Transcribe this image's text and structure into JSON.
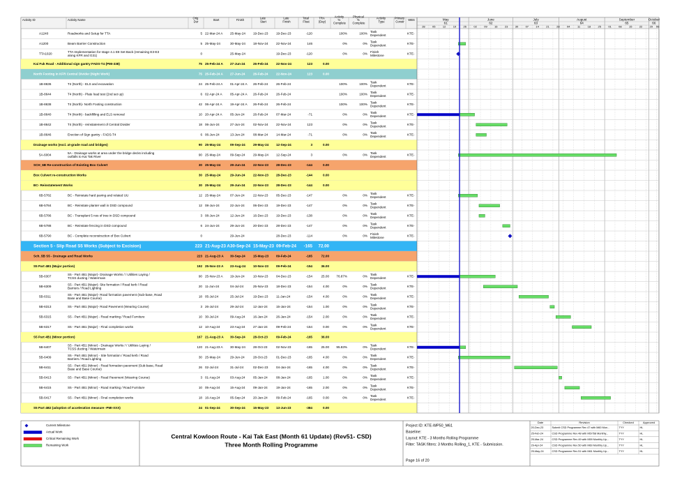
{
  "table": {
    "columns": [
      "Activity ID",
      "Activity Name",
      "Orig Dur",
      "Start",
      "Finish",
      "Late Start",
      "Late Finish",
      "Total Float",
      "TRA (Day)",
      "Activity % Complete",
      "Physical % Complete",
      "Activity Type",
      "Primary Constr",
      "WBS"
    ],
    "rows": [
      {
        "cells": [
          "A1240",
          "Roadworks and Setup for TTA",
          5,
          "22-Mar-24 A",
          "25-May-24",
          "19-Dec-23",
          "19-Dec-23",
          -120,
          null,
          "100%",
          "100%",
          "Task Dependent",
          null,
          "KTE-"
        ]
      },
      {
        "cells": [
          "A1200",
          "Beam Barrier Construction",
          5,
          "25-May-24",
          "30-May-24",
          "18-Nov-24",
          "22-Nov-24",
          146,
          null,
          "0%",
          "0%",
          "Task Dependent",
          null,
          "KTE-"
        ]
      },
      {
        "cells": [
          "TTA1020",
          "TTA Implementation for stage 4.1 E8 Set Back (remaining E3-E3 along KFR and G31)",
          0,
          null,
          "25-May-24",
          null,
          "19-Dec-23",
          -120,
          null,
          "0%",
          "0%",
          "Finish Milestone",
          null,
          "KTE-"
        ]
      },
      {
        "color": "#ffff99",
        "cells": [
          null,
          "Kai Fuk Road - Additional sign gantry FADS-T4 (PMI-338)",
          75,
          "25-Feb-24 A",
          "27-Jun-24",
          "26-Feb-24",
          "22-Nov-24",
          123,
          "0.00"
        ]
      },
      {
        "color": "#8fcfcf",
        "text_color": "#ffffff",
        "cells": [
          null,
          "North Footing in KFR Central Divider (Night Work)",
          75,
          "25-Feb-24 A",
          "27-Jun-24",
          "26-Feb-24",
          "22-Nov-24",
          123,
          "0.00"
        ]
      },
      {
        "cells": [
          "1B-8636",
          "T4 (North) - ELS and excavation",
          24,
          "25-Feb-24 A",
          "01-Apr-24 A",
          "26-Feb-24",
          "26-Feb-24",
          null,
          null,
          "100%",
          "100%",
          "Task Dependent",
          null,
          "KTE-"
        ]
      },
      {
        "cells": [
          "1B-8644",
          "T4 (North) - Plate load test (2nd set up)",
          6,
          "02-Apr-24 A",
          "05-Apr-24 A",
          "26-Feb-24",
          "26-Feb-24",
          null,
          null,
          "100%",
          "100%",
          "Task Dependent",
          null,
          "KTE-"
        ]
      },
      {
        "cells": [
          "1B-8638",
          "T4 (North)- North Footing construction",
          42,
          "06-Apr-24 A",
          "19-Apr-24 A",
          "26-Feb-24",
          "26-Feb-24",
          null,
          null,
          "100%",
          "100%",
          "Task Dependent",
          null,
          "KTE-"
        ]
      },
      {
        "cells": [
          "1B-8640",
          "T4 (North) - backfilling and ELS removal",
          10,
          "20-Apr-24 A",
          "05-Jun-24",
          "26-Feb-24",
          "07-Mar-24",
          -71,
          null,
          "0%",
          "0%",
          "Task Dependent",
          null,
          "KTE-"
        ]
      },
      {
        "cells": [
          "1B-8642",
          "T4 (North) - reinstatement of Central Divider",
          18,
          "06-Jun-24",
          "27-Jun-24",
          "02-Nov-24",
          "22-Nov-24",
          123,
          null,
          "0%",
          "0%",
          "Task Dependent",
          null,
          "KTE-"
        ]
      },
      {
        "cells": [
          "1B-8646",
          "Erection of Sign gantry - FADS-T4",
          6,
          "06-Jun-24",
          "13-Jun-24",
          "08-Mar-24",
          "14-Mar-24",
          -71,
          null,
          "0%",
          "0%",
          "Task Dependent",
          null,
          "KTE-"
        ]
      },
      {
        "color": "#ffff99",
        "cells": [
          null,
          "Drainage works (excl. at-grade road and bridges)",
          90,
          "25-May-24",
          "09-Sep-24",
          "29-May-24",
          "12-Sep-24",
          3,
          "0.00"
        ]
      },
      {
        "cells": [
          "5A-6004",
          "5A - Drainage works at area under the bridge decks including outfalls to Kai Tak River",
          90,
          "25-May-24",
          "09-Sep-24",
          "29-May-24",
          "12-Sep-24",
          3,
          null,
          "0%",
          "0%",
          "Task Dependent",
          null,
          "KTE-"
        ]
      },
      {
        "color": "#f6a46c",
        "cells": [
          null,
          "SCH_6B Re-construction of Existing Box Culvert",
          30,
          "25-May-24",
          "29-Jun-24",
          "22-Nov-23",
          "28-Dec-23",
          -144,
          "0.00"
        ]
      },
      {
        "color": "#ffff99",
        "cells": [
          null,
          "Box Culvert re-construction Works",
          30,
          "25-May-24",
          "29-Jun-24",
          "22-Nov-23",
          "28-Dec-23",
          -144,
          "0.00"
        ]
      },
      {
        "color": "#ffff99",
        "cells": [
          null,
          "BC- Reinstatement Works",
          30,
          "25-May-24",
          "29-Jun-24",
          "22-Nov-23",
          "28-Dec-23",
          -144,
          "0.00"
        ]
      },
      {
        "cells": [
          "6B-5782",
          "BC - Reinstate hard paving and related UU",
          12,
          "25-May-24",
          "07-Jun-24",
          "22-Nov-23",
          "05-Dec-23",
          -147,
          null,
          "0%",
          "0%",
          "Task Dependent",
          null,
          "KTE-"
        ]
      },
      {
        "cells": [
          "6B-5784",
          "BC - Reinstate planter wall in DSD compound",
          12,
          "08-Jun-24",
          "22-Jun-24",
          "06-Dec-23",
          "19-Dec-23",
          -147,
          null,
          "0%",
          "0%",
          "Task Dependent",
          null,
          "KTE-"
        ]
      },
      {
        "cells": [
          "6B-5786",
          "BC - Transplant 5 nos of tree in DSD compound",
          3,
          "08-Jun-24",
          "12-Jun-24",
          "16-Dec-23",
          "19-Dec-23",
          -138,
          null,
          "0%",
          "0%",
          "Task Dependent",
          null,
          "KTE-"
        ]
      },
      {
        "cells": [
          "6B-5788",
          "BC - Reinstate fencing in DSD compound",
          6,
          "24-Jun-24",
          "29-Jun-24",
          "20-Dec-23",
          "28-Dec-23",
          -147,
          null,
          "0%",
          "0%",
          "Task Dependent",
          null,
          "KTE-"
        ]
      },
      {
        "cells": [
          "6B-5790",
          "BC - Complete reconstruction of Box Culvert",
          0,
          null,
          "29-Jun-24",
          null,
          "28-Dec-23",
          -114,
          null,
          "0%",
          "0%",
          "Finish Milestone",
          null,
          "KTE-"
        ]
      },
      {
        "color": "#33b5f5",
        "text_color": "#ffffff",
        "large": true,
        "cells": [
          null,
          "Section 5 - Slip Road S5 Works (Subject to Excision)",
          223,
          "21-Aug-23 A",
          "30-Sep-24",
          "15-May-23",
          "09-Feb-24",
          -165,
          "72.00"
        ]
      },
      {
        "color": "#f6a46c",
        "cells": [
          null,
          "Sch_5B S5 - Drainage and Road Works",
          223,
          "21-Aug-23 A",
          "30-Sep-24",
          "15-May-23",
          "09-Feb-24",
          -165,
          "72.00"
        ]
      },
      {
        "color": "#ffff99",
        "cells": [
          null,
          "S5 Part 4B1 (Major portion)",
          192,
          "25-Nov-23 A",
          "23-Aug-24",
          "10-Nov-23",
          "09-Feb-24",
          -154,
          "36.00"
        ]
      },
      {
        "cells": [
          "5B-6307",
          "S5 - Part 4B1 (Major)- Drainage Works / / Utilities Laying / TCSS ducting / Watermain",
          90,
          "25-Nov-23 A",
          "19-Jun-24",
          "10-Nov-23",
          "04-Dec-23",
          -154,
          "25.00",
          "76.87%",
          "0%",
          "Task Dependent",
          null,
          "KTE-"
        ]
      },
      {
        "cells": [
          "5B-6309",
          "S5 - Part 4B1 (Major)- Site formation / Road kerb / Road Barriers / Road Lighting",
          20,
          "11-Jun-24",
          "04-Jul-24",
          "25-Nov-23",
          "18-Dec-23",
          -154,
          "4.00",
          "0%",
          "0%",
          "Task Dependent",
          null,
          "KTE-"
        ]
      },
      {
        "cells": [
          "5B-6311",
          "S5 - Part 4B1 (Major)- Road formation pavement (Sub-base, Road Base and Base Course)",
          18,
          "05-Jul-24",
          "25-Jul-24",
          "19-Dec-23",
          "11-Jan-24",
          -154,
          "4.00",
          "0%",
          "0%",
          "Task Dependent",
          null,
          "KTE-"
        ]
      },
      {
        "cells": [
          "5B-6313",
          "S5 - Part 4B1 (Major)- Road Pavement (Wearing Course)",
          3,
          "26-Jul-24",
          "29-Jul-24",
          "12-Jan-24",
          "15-Jan-24",
          -154,
          "1.00",
          "0%",
          "0%",
          "Task Dependent",
          null,
          "KTE-"
        ]
      },
      {
        "cells": [
          "5B-6315",
          "S5 - Part 4B1 (Major) - Road marking / Road Furniture",
          10,
          "30-Jul-24",
          "09-Aug-24",
          "16-Jan-24",
          "26-Jan-24",
          -154,
          "2.00",
          "0%",
          "0%",
          "Task Dependent",
          null,
          "KTE-"
        ]
      },
      {
        "cells": [
          "5B-6317",
          "S5 - Part 4B1 (Major) - Final completion works",
          12,
          "10-Aug-24",
          "23-Aug-24",
          "27-Jan-24",
          "09-Feb-24",
          -154,
          "0.00",
          "0%",
          "0%",
          "Task Dependent",
          null,
          "KTE-"
        ]
      },
      {
        "color": "#ffff99",
        "cells": [
          null,
          "S5 Part 4B1 (Minor portion)",
          167,
          "21-Aug-23 A",
          "30-Sep-24",
          "28-Oct-23",
          "09-Feb-24",
          -165,
          "36.00"
        ]
      },
      {
        "cells": [
          "5B-6407",
          "S5 - Part 4B1 (Minor) - Drainage Works / / Utilities Laying / TCSS ducting / Watermain",
          120,
          "21-Aug-23 A",
          "30-May-24",
          "28-Oct-23",
          "02-Nov-23",
          -165,
          "25.00",
          "95.83%",
          "0%",
          "Task Dependent",
          null,
          "KTE-"
        ]
      },
      {
        "cells": [
          "5B-6409",
          "S5 - Part 4B1 (Minor) - Site formation / Road kerb / Road Barriers / Road Lighting",
          30,
          "25-May-24",
          "29-Jun-24",
          "28-Oct-23",
          "01-Dec-23",
          -165,
          "4.00",
          "0%",
          "0%",
          "Task Dependent",
          null,
          "KTE-"
        ]
      },
      {
        "cells": [
          "5B-6411",
          "S5 - Part 4B1 (Minor) - Road formation pavement (Sub-base, Road Base and Base Course)",
          26,
          "02-Jul-24",
          "31-Jul-24",
          "02-Dec-23",
          "04-Jan-24",
          -165,
          "4.00",
          "0%",
          "0%",
          "Task Dependent",
          null,
          "KTE-"
        ]
      },
      {
        "cells": [
          "5B-6413",
          "S5 - Part 4B1 (Minor) - Road Pavement (Wearing Course)",
          3,
          "01-Aug-24",
          "03-Aug-24",
          "05-Jan-24",
          "08-Jan-24",
          -165,
          "1.00",
          "0%",
          "0%",
          "Task Dependent",
          null,
          "KTE-"
        ]
      },
      {
        "cells": [
          "5B-6415",
          "S5 - Part 4B1 (Minor) - Road marking / Road Furniture",
          10,
          "05-Aug-24",
          "15-Aug-24",
          "09-Jan-24",
          "19-Jan-24",
          -165,
          "2.00",
          "0%",
          "0%",
          "Task Dependent",
          null,
          "KTE-"
        ]
      },
      {
        "cells": [
          "5B-6417",
          "S5 - Part 4B1 (Minor) - Final completion works",
          18,
          "16-Aug-24",
          "05-Sep-24",
          "20-Jan-24",
          "09-Feb-24",
          -165,
          "0.00",
          "0%",
          "0%",
          "Task Dependent",
          null,
          "KTE-"
        ]
      },
      {
        "color": "#ffff99",
        "cells": [
          null,
          "S5 Part 4B2 (adoption of acceleration measure -PMI-XXX)",
          24,
          "01-Sep-24",
          "30-Sep-24",
          "15-May-23",
          "13-Jun-23",
          -384,
          "0.00"
        ]
      }
    ]
  },
  "timeline": {
    "months": [
      {
        "name": "May",
        "period": "61"
      },
      {
        "name": "June",
        "period": "62"
      },
      {
        "name": "July",
        "period": "63"
      },
      {
        "name": "August",
        "period": "64"
      },
      {
        "name": "September",
        "period": "65"
      },
      {
        "name": "October",
        "period": "66"
      }
    ],
    "weeks": [
      {
        "value": "28-Apr-24",
        "label": "28"
      },
      {
        "value": "05-May-24",
        "label": "05"
      },
      {
        "value": "12-May-24",
        "label": "12"
      },
      {
        "value": "19-May-24",
        "label": "19"
      },
      {
        "value": "26-May-24",
        "label": "26"
      },
      {
        "value": "02-Jun-24",
        "label": "02"
      },
      {
        "value": "09-Jun-24",
        "label": "09"
      },
      {
        "value": "16-Jun-24",
        "label": "16"
      },
      {
        "value": "23-Jun-24",
        "label": "23"
      },
      {
        "value": "30-Jun-24",
        "label": "30"
      },
      {
        "value": "07-Jul-24",
        "label": "07"
      },
      {
        "value": "14-Jul-24",
        "label": "14"
      },
      {
        "value": "21-Jul-24",
        "label": "21"
      },
      {
        "value": "28-Jul-24",
        "label": "28"
      },
      {
        "value": "04-Aug-24",
        "label": "04"
      },
      {
        "value": "11-Aug-24",
        "label": "11"
      },
      {
        "value": "18-Aug-24",
        "label": "18"
      },
      {
        "value": "25-Aug-24",
        "label": "25"
      },
      {
        "value": "01-Sep-24",
        "label": "01"
      },
      {
        "value": "08-Sep-24",
        "label": "08"
      },
      {
        "value": "15-Sep-24",
        "label": "15"
      },
      {
        "value": "22-Sep-24",
        "label": "22"
      },
      {
        "value": "29-Sep-24",
        "label": "29"
      },
      {
        "value": "06-Oct-24",
        "label": "06"
      }
    ]
  },
  "legend": [
    "Current Milestone",
    "Actual Work",
    "Critical Remaining Work",
    "Remaining Work"
  ],
  "footer": {
    "title": "Central Kowloon Route - Kai Tak East (Month 61 Update) (Rev51- CSD)",
    "subtitle": "Three Month Rolling Programme",
    "info": [
      "Project ID: KTE-WP50_M61",
      "Baseline:",
      "Layout: KTE - 3 Months Rolling Programme",
      "Filter: TASK filters: 3 Months Rolling_1, KTE - Submission."
    ],
    "page": "Page 16 of 20"
  },
  "revisions": {
    "columns": [
      "Date",
      "Revision",
      "Checked",
      "Approved"
    ],
    "rows": [
      [
        "20-Dec-23",
        "Submit CSD Programme Rev 47 with M60 Mon...",
        "TYY",
        "HL"
      ],
      [
        "25-Feb-24",
        "CSD Programme Rev 48 with M57/58 Monthly...",
        "TYY",
        "HL"
      ],
      [
        "25-Mar-24",
        "CSD Programme Rev 49 with M59 Monthly Up...",
        "TYY",
        "HL"
      ],
      [
        "29-Apr-24",
        "CSD Programme Rev 50 with M60 Monthly Up...",
        "TYY",
        "HL"
      ],
      [
        "25-May-24",
        "CSD Programme Rev 51 with M61 Monthly Up...",
        "TYY",
        "HL"
      ]
    ]
  }
}
